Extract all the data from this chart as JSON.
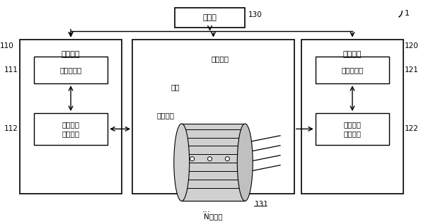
{
  "bg_color": "#ffffff",
  "border_color": "#000000",
  "box_fill": "#ffffff",
  "gray_fill": "#e8e8e8",
  "fig_width": 5.95,
  "fig_height": 3.14,
  "title_num": "1",
  "label_130": "130",
  "label_110": "110",
  "label_120": "120",
  "label_111": "111",
  "label_112": "112",
  "label_121": "121",
  "label_122": "122",
  "label_131": "131",
  "text_controller": "控制器",
  "text_port1": "第一端口",
  "text_port2": "第二端口",
  "text_proc1": "第一处理器",
  "text_proc2": "第二处理器",
  "text_sig1": "第一信号\n处理模块",
  "text_sig2": "第二信号\n处理模块",
  "text_stator": "定子导线",
  "text_brush": "刷丝",
  "text_rotor": "转子导线",
  "text_rings": "N个环道",
  "text_dots": "..."
}
